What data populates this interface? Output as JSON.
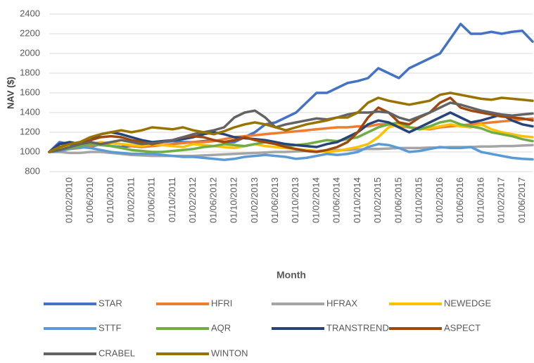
{
  "chart_data": {
    "type": "line",
    "y_label": "NAV ($)",
    "x_label": "Month",
    "categories": [
      null,
      null,
      "01/02/2010",
      null,
      "01/06/2010",
      null,
      "01/10/2010",
      null,
      "01/02/2011",
      null,
      "01/06/2011",
      null,
      "01/10/2011",
      null,
      "01/02/2012",
      null,
      "01/06/2012",
      null,
      "01/10/2012",
      null,
      "01/02/2013",
      null,
      "01/06/2013",
      null,
      "01/10/2013",
      null,
      "01/02/2014",
      null,
      "01/06/2014",
      null,
      "01/10/2014",
      null,
      "01/02/2015",
      null,
      "01/06/2015",
      null,
      "01/10/2015",
      null,
      "01/02/2016",
      null,
      "01/06/2016",
      null,
      "01/10/2016",
      null,
      "01/02/2017",
      null,
      "01/06/2017",
      null
    ],
    "ylim": [
      800,
      2400
    ],
    "yticks": [
      800,
      1000,
      1200,
      1400,
      1600,
      1800,
      2000,
      2200,
      2400
    ],
    "grid": true,
    "legend": "bottom",
    "series": [
      {
        "name": "STAR",
        "color": "#4472c4",
        "values": [
          1000,
          1100,
          1080,
          1050,
          1050,
          1080,
          1060,
          1050,
          1060,
          1050,
          1080,
          1100,
          1110,
          1100,
          1100,
          1110,
          1120,
          1100,
          1100,
          1150,
          1200,
          1280,
          1300,
          1350,
          1400,
          1500,
          1600,
          1600,
          1650,
          1700,
          1720,
          1750,
          1850,
          1800,
          1750,
          1850,
          1900,
          1950,
          2000,
          2150,
          2300,
          2200,
          2200,
          2220,
          2200,
          2220,
          2230,
          2120
        ]
      },
      {
        "name": "HFRI",
        "color": "#ed7d31",
        "values": [
          1000,
          1020,
          1030,
          1040,
          1060,
          1080,
          1090,
          1080,
          1060,
          1050,
          1060,
          1070,
          1080,
          1090,
          1100,
          1100,
          1110,
          1130,
          1150,
          1160,
          1170,
          1180,
          1190,
          1200,
          1210,
          1220,
          1230,
          1240,
          1250,
          1250,
          1260,
          1260,
          1280,
          1280,
          1260,
          1250,
          1240,
          1230,
          1250,
          1260,
          1270,
          1280,
          1290,
          1300,
          1310,
          1320,
          1330,
          1340
        ]
      },
      {
        "name": "HFRAX",
        "color": "#a5a5a5",
        "values": [
          1000,
          1000,
          990,
          990,
          1000,
          1000,
          990,
          980,
          970,
          965,
          960,
          960,
          960,
          960,
          960,
          965,
          970,
          975,
          980,
          985,
          990,
          995,
          1000,
          1000,
          1005,
          1010,
          1010,
          1015,
          1020,
          1020,
          1025,
          1030,
          1030,
          1035,
          1040,
          1040,
          1040,
          1045,
          1045,
          1050,
          1050,
          1050,
          1055,
          1055,
          1060,
          1060,
          1065,
          1070
        ]
      },
      {
        "name": "NEWEDGE",
        "color": "#ffc000",
        "values": [
          1000,
          1030,
          1050,
          1060,
          1080,
          1100,
          1090,
          1080,
          1070,
          1060,
          1080,
          1070,
          1060,
          1050,
          1080,
          1070,
          1060,
          1050,
          1040,
          1060,
          1080,
          1060,
          1050,
          1040,
          1030,
          1020,
          1010,
          1000,
          1010,
          1030,
          1050,
          1080,
          1150,
          1250,
          1280,
          1250,
          1230,
          1240,
          1260,
          1280,
          1260,
          1250,
          1280,
          1230,
          1200,
          1180,
          1160,
          1150
        ]
      },
      {
        "name": "STTF",
        "color": "#5b9bd5",
        "values": [
          1000,
          1010,
          1030,
          1050,
          1040,
          1020,
          1000,
          990,
          980,
          980,
          980,
          970,
          960,
          950,
          950,
          940,
          930,
          920,
          930,
          950,
          960,
          970,
          960,
          950,
          930,
          940,
          960,
          980,
          970,
          980,
          1000,
          1050,
          1080,
          1070,
          1040,
          1000,
          1010,
          1030,
          1050,
          1040,
          1040,
          1050,
          1000,
          980,
          960,
          940,
          930,
          925
        ]
      },
      {
        "name": "AQR",
        "color": "#70ad47",
        "values": [
          1000,
          1020,
          1040,
          1060,
          1080,
          1070,
          1060,
          1040,
          1020,
          1010,
          1000,
          1000,
          1010,
          1020,
          1030,
          1050,
          1060,
          1080,
          1070,
          1060,
          1080,
          1100,
          1080,
          1060,
          1070,
          1080,
          1100,
          1120,
          1110,
          1130,
          1150,
          1200,
          1250,
          1280,
          1300,
          1250,
          1230,
          1260,
          1300,
          1320,
          1280,
          1260,
          1240,
          1200,
          1180,
          1160,
          1130,
          1110
        ]
      },
      {
        "name": "TRANSTREND",
        "color": "#264478",
        "values": [
          1000,
          1080,
          1100,
          1080,
          1120,
          1180,
          1200,
          1180,
          1150,
          1120,
          1100,
          1110,
          1120,
          1130,
          1150,
          1180,
          1200,
          1180,
          1150,
          1140,
          1130,
          1120,
          1100,
          1080,
          1070,
          1060,
          1050,
          1080,
          1100,
          1150,
          1200,
          1280,
          1320,
          1300,
          1250,
          1200,
          1250,
          1300,
          1350,
          1400,
          1350,
          1300,
          1320,
          1350,
          1380,
          1320,
          1280,
          1260
        ]
      },
      {
        "name": "ASPECT",
        "color": "#9e480e",
        "values": [
          1000,
          1050,
          1080,
          1100,
          1120,
          1150,
          1160,
          1150,
          1120,
          1100,
          1080,
          1100,
          1120,
          1150,
          1160,
          1150,
          1120,
          1100,
          1120,
          1150,
          1120,
          1100,
          1080,
          1050,
          1030,
          1010,
          1000,
          1020,
          1050,
          1100,
          1200,
          1350,
          1450,
          1400,
          1300,
          1280,
          1350,
          1400,
          1500,
          1550,
          1450,
          1420,
          1400,
          1380,
          1360,
          1350,
          1340,
          1320
        ]
      },
      {
        "name": "CRABEL",
        "color": "#636363",
        "values": [
          1000,
          1020,
          1050,
          1080,
          1100,
          1080,
          1100,
          1120,
          1100,
          1080,
          1090,
          1100,
          1120,
          1150,
          1180,
          1200,
          1220,
          1250,
          1350,
          1400,
          1420,
          1350,
          1250,
          1280,
          1300,
          1320,
          1340,
          1330,
          1350,
          1380,
          1400,
          1400,
          1410,
          1400,
          1350,
          1320,
          1360,
          1400,
          1450,
          1500,
          1480,
          1450,
          1420,
          1400,
          1380,
          1370,
          1380,
          1390
        ]
      },
      {
        "name": "WINTON",
        "color": "#997300",
        "values": [
          1000,
          1050,
          1080,
          1100,
          1150,
          1180,
          1200,
          1220,
          1200,
          1220,
          1250,
          1240,
          1230,
          1250,
          1220,
          1200,
          1180,
          1210,
          1250,
          1280,
          1300,
          1280,
          1250,
          1220,
          1250,
          1280,
          1300,
          1320,
          1350,
          1350,
          1400,
          1500,
          1550,
          1520,
          1500,
          1480,
          1500,
          1520,
          1580,
          1600,
          1580,
          1560,
          1540,
          1530,
          1550,
          1540,
          1530,
          1520
        ]
      }
    ]
  }
}
